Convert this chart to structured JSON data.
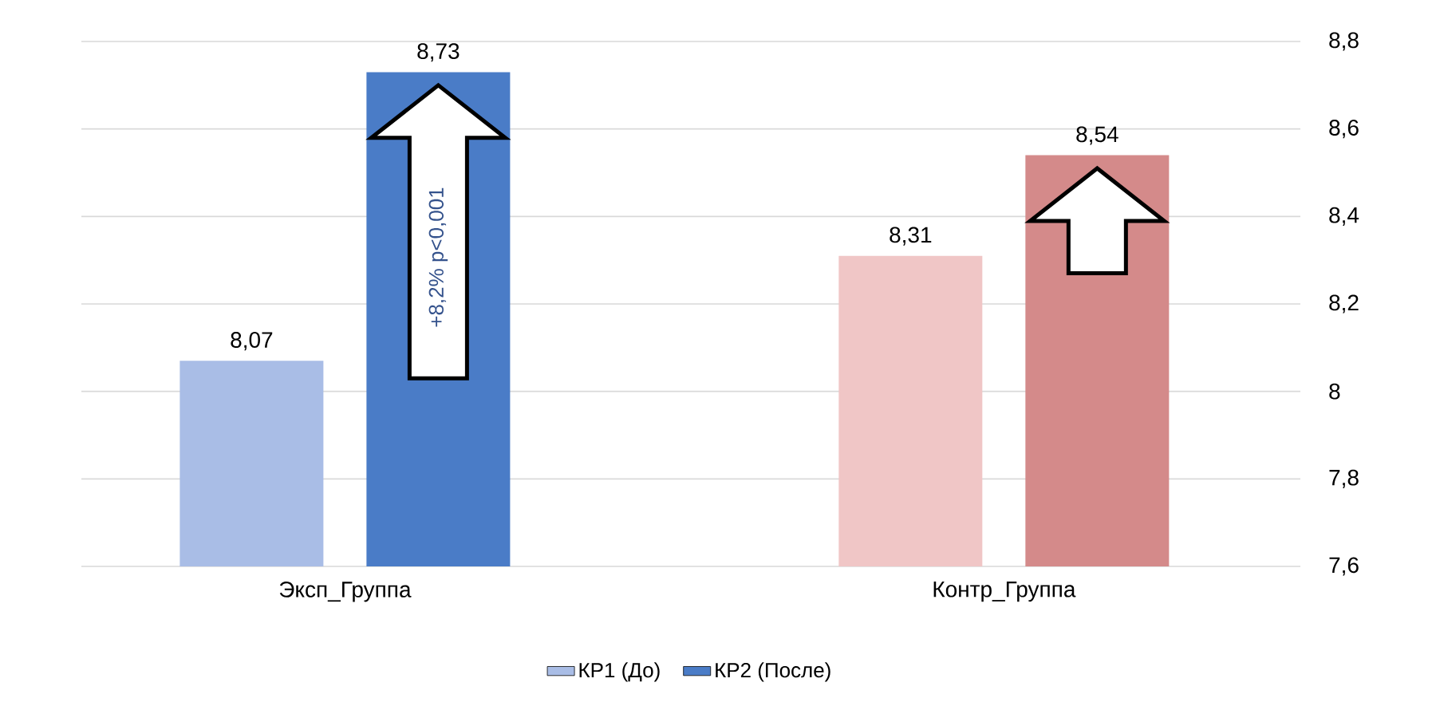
{
  "chart_data": {
    "type": "bar",
    "categories": [
      "Эксп_Группа",
      "Контр_Группа"
    ],
    "series": [
      {
        "name": "КР1 (До)",
        "color": "#a9bde6",
        "colors": [
          "#a9bde6",
          "#f0c6c6"
        ],
        "values": [
          8.07,
          8.31
        ],
        "value_labels": [
          "8,07",
          "8,31"
        ]
      },
      {
        "name": "КР2 (После)",
        "color": "#4a7cc7",
        "colors": [
          "#4a7cc7",
          "#d48a8a"
        ],
        "values": [
          8.73,
          8.54
        ],
        "value_labels": [
          "8,73",
          "8,54"
        ]
      }
    ],
    "ylim": [
      7.6,
      8.8
    ],
    "yticks": [
      {
        "value": 7.6,
        "label": "7,6"
      },
      {
        "value": 7.8,
        "label": "7,8"
      },
      8,
      {
        "value": 8.2,
        "label": "8,2"
      },
      {
        "value": 8.4,
        "label": "8,4"
      },
      {
        "value": 8.6,
        "label": "8,6"
      },
      {
        "value": 8.8,
        "label": "8,8"
      }
    ],
    "grid": "y",
    "legend": "bottom",
    "annotations": [
      "+8,2%  p<0,001"
    ]
  }
}
